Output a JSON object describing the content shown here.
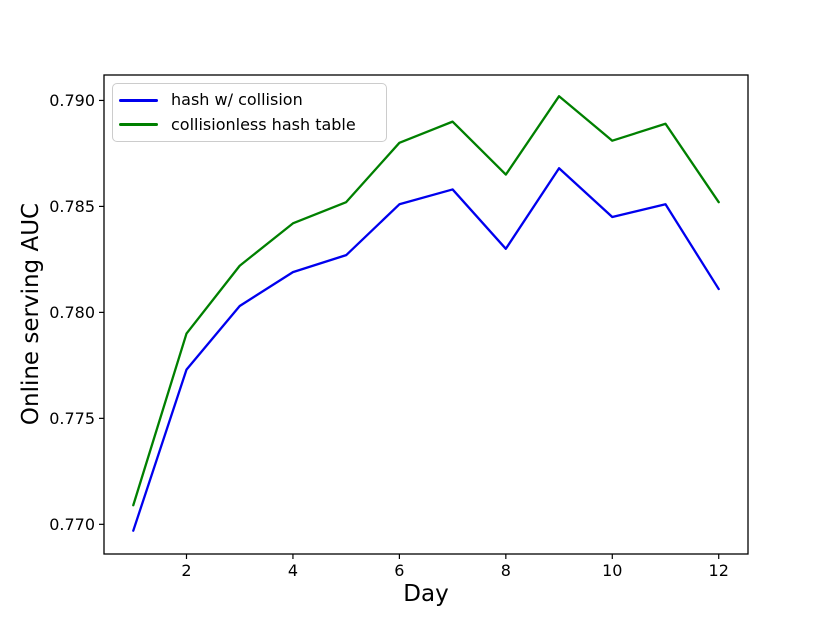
{
  "chart_data": {
    "type": "line",
    "title": "",
    "xlabel": "Day",
    "ylabel": "Online serving AUC",
    "x": [
      1,
      2,
      3,
      4,
      5,
      6,
      7,
      8,
      9,
      10,
      11,
      12
    ],
    "series": [
      {
        "name": "hash w/ collision",
        "color": "#0000ee",
        "values": [
          0.7697,
          0.7773,
          0.7803,
          0.7819,
          0.7827,
          0.7851,
          0.7858,
          0.783,
          0.7868,
          0.7845,
          0.7851,
          0.7811
        ]
      },
      {
        "name": "collisionless hash table",
        "color": "#008000",
        "values": [
          0.7709,
          0.779,
          0.7822,
          0.7842,
          0.7852,
          0.788,
          0.789,
          0.7865,
          0.7902,
          0.7881,
          0.7889,
          0.7852
        ]
      }
    ],
    "xlim": [
      0.45,
      12.55
    ],
    "ylim": [
      0.7686,
      0.7912
    ],
    "xticks": [
      2,
      4,
      6,
      8,
      10,
      12
    ],
    "xtick_labels": [
      "2",
      "4",
      "6",
      "8",
      "10",
      "12"
    ],
    "yticks": [
      0.77,
      0.775,
      0.78,
      0.785,
      0.79
    ],
    "ytick_labels": [
      "0.770",
      "0.775",
      "0.780",
      "0.785",
      "0.790"
    ],
    "grid": false,
    "legend_position": "upper left",
    "background_color": "#ffffff",
    "spine_color": "#000000"
  }
}
